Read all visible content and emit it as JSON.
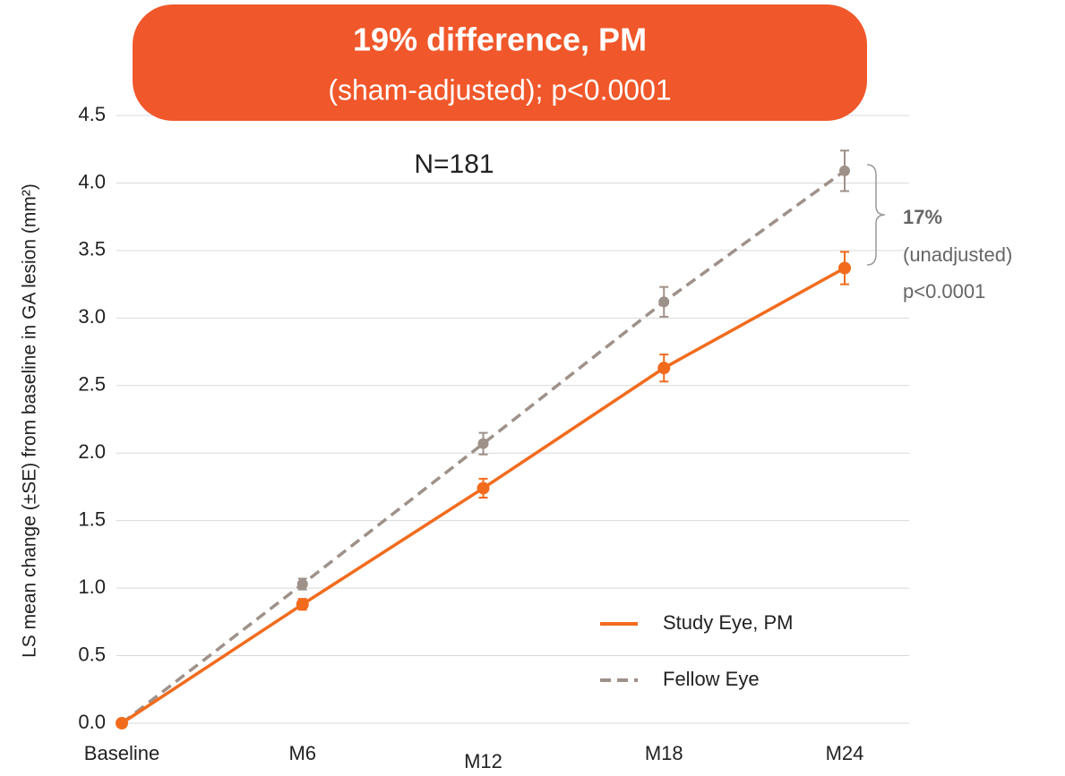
{
  "chart_data": {
    "type": "line",
    "title": "19% difference, PM",
    "subtitle": "(sham-adjusted); p<0.0001",
    "y_label": "LS mean change (±SE) from baseline in GA lesion (mm²)",
    "categories": [
      "Baseline",
      "M6",
      "M12",
      "M18",
      "M24"
    ],
    "series": [
      {
        "name": "Study Eye, PM",
        "color": "#f26b1d",
        "dash": false,
        "values": [
          0,
          0.88,
          1.74,
          2.63,
          3.37
        ],
        "errors": [
          null,
          0.04,
          0.07,
          0.1,
          0.12
        ]
      },
      {
        "name": "Fellow Eye",
        "color": "#9e9189",
        "dash": true,
        "values": [
          0,
          1.03,
          2.07,
          3.12,
          4.09
        ],
        "errors": [
          null,
          0.04,
          0.08,
          0.11,
          0.15
        ]
      }
    ],
    "ylim": [
      0,
      4.5
    ],
    "yticks": [
      {
        "value": 0,
        "label": "0.0"
      },
      0.5,
      {
        "value": 1,
        "label": "1.0"
      },
      1.5,
      {
        "value": 2,
        "label": "2.0"
      },
      2.5,
      {
        "value": 3,
        "label": "3.0"
      },
      3.5,
      {
        "value": 4,
        "label": "4.0"
      },
      4.5
    ],
    "grid": true,
    "annotations": [
      "N=181",
      "17%",
      "(unadjusted)",
      "p<0.0001"
    ]
  }
}
